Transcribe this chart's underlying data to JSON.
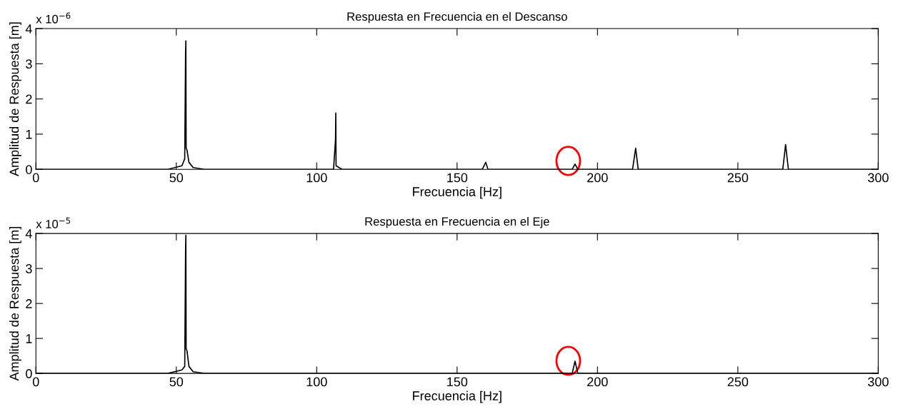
{
  "chart_data": [
    {
      "type": "line",
      "title": "Respuesta en Frecuencia en el Descanso",
      "xlabel": "Frecuencia [Hz]",
      "ylabel": "Amplitud de Respuesta [m]",
      "annotations": [
        "x 10$^{−6}$"
      ],
      "series": [
        {
          "color": "#000000",
          "x": [
            0,
            47,
            52,
            53,
            53.3,
            53.4,
            53.5,
            53.8,
            54.5,
            56,
            60,
            106,
            106.7,
            106.8,
            106.9,
            109,
            159,
            160.2,
            161,
            191,
            192,
            193,
            212.5,
            213.6,
            214.5,
            266,
            267,
            268,
            300
          ],
          "values": [
            0,
            0,
            0.1,
            0.3,
            3.3,
            3.65,
            0.6,
            0.55,
            0.2,
            0.05,
            0,
            0,
            0.85,
            1.6,
            0.1,
            0,
            0,
            0.2,
            0,
            0,
            0.15,
            0,
            0,
            0.6,
            0,
            0,
            0.7,
            0,
            0
          ]
        }
      ],
      "xlim": [
        0,
        300
      ],
      "xticks": [
        0,
        50,
        100,
        150,
        200,
        250,
        300
      ],
      "ylim": [
        0,
        4
      ],
      "yticks": [
        0,
        1,
        2,
        3,
        4
      ],
      "grid": false,
      "legend": false
    },
    {
      "type": "line",
      "title": "Respuesta en Frecuencia en el Eje",
      "xlabel": "Frecuencia [Hz]",
      "ylabel": "Amplitud de Respuesta [m]",
      "annotations": [
        "x 10$^{−5}$"
      ],
      "series": [
        {
          "color": "#000000",
          "x": [
            0,
            47,
            52,
            53,
            53.3,
            53.4,
            53.5,
            53.8,
            54.5,
            56,
            60,
            191,
            192,
            193,
            300
          ],
          "values": [
            0,
            0,
            0.1,
            0.2,
            3.5,
            3.95,
            0.7,
            0.65,
            0.2,
            0.05,
            0,
            0,
            0.35,
            0,
            0
          ]
        }
      ],
      "xlim": [
        0,
        300
      ],
      "xticks": [
        0,
        50,
        100,
        150,
        200,
        250,
        300
      ],
      "ylim": [
        0,
        4
      ],
      "yticks": [
        0,
        1,
        2,
        3,
        4
      ],
      "grid": false,
      "legend": false
    }
  ]
}
